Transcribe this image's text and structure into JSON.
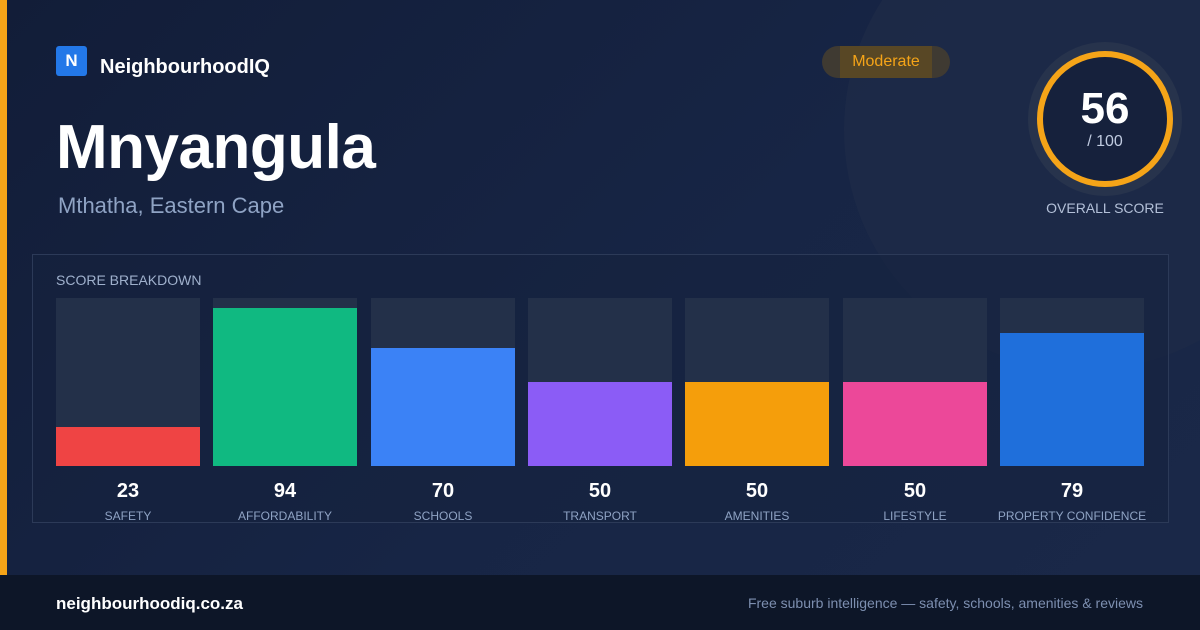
{
  "brand": {
    "logo_letter": "N",
    "name": "NeighbourhoodIQ"
  },
  "suburb": {
    "name": "Mnyangula",
    "location": "Mthatha, Eastern Cape"
  },
  "rating": {
    "label": "Moderate",
    "color": "#f5a418"
  },
  "overall": {
    "score": "56",
    "max": "/ 100",
    "label": "OVERALL SCORE"
  },
  "breakdown": {
    "title": "SCORE BREAKDOWN",
    "max": 100,
    "items": [
      {
        "label": "SAFETY",
        "value": 23,
        "color": "#ef4444"
      },
      {
        "label": "AFFORDABILITY",
        "value": 94,
        "color": "#10b981"
      },
      {
        "label": "SCHOOLS",
        "value": 70,
        "color": "#3b82f6"
      },
      {
        "label": "TRANSPORT",
        "value": 50,
        "color": "#8b5cf6"
      },
      {
        "label": "AMENITIES",
        "value": 50,
        "color": "#f59e0b"
      },
      {
        "label": "LIFESTYLE",
        "value": 50,
        "color": "#ec4899"
      },
      {
        "label": "PROPERTY CONFIDENCE",
        "value": 79,
        "color": "#1f6fdb"
      }
    ]
  },
  "footer": {
    "url": "neighbourhoodiq.co.za",
    "tagline": "Free suburb intelligence — safety, schools, amenities & reviews"
  }
}
